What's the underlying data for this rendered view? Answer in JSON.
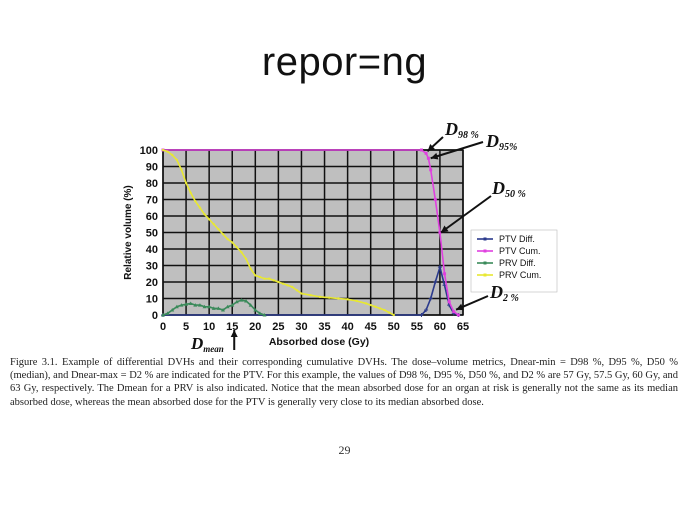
{
  "slide": {
    "title": "repor=ng",
    "caption": "Figure 3.1. Example of differential DVHs and their corresponding cumulative DVHs. The dose–volume metrics, Dnear-min = D98 %, D95 %, D50 % (median), and Dnear-max = D2 % are indicated for the PTV. For this example, the values of D98 %, D95 %, D50 %, and D2 % are 57 Gy, 57.5 Gy, 60 Gy, and 63 Gy, respectively. The Dmean for a PRV is also indicated. Notice that the mean absorbed dose for an organ at risk is generally not the same as its median absorbed dose, whereas the mean absorbed dose for the PTV is generally very close to its median absorbed dose.",
    "page_number": "29"
  },
  "chart_data": {
    "type": "line",
    "xlabel": "Absorbed dose (Gy)",
    "ylabel": "Relative volume (%)",
    "xlim": [
      0,
      65
    ],
    "ylim": [
      0,
      100
    ],
    "xticks": [
      0,
      5,
      10,
      15,
      20,
      25,
      30,
      35,
      40,
      45,
      50,
      55,
      60,
      65
    ],
    "yticks": [
      0,
      10,
      20,
      30,
      40,
      50,
      60,
      70,
      80,
      90,
      100
    ],
    "grid": true,
    "background": "#bfbfbf",
    "legend_position": "right",
    "series": [
      {
        "name": "PTV Diff.",
        "color": "#2b3a8c",
        "marker": "plus",
        "x": [
          0,
          56,
          57,
          58,
          59,
          60,
          61,
          62,
          63,
          64
        ],
        "y": [
          0,
          0,
          3,
          10,
          20,
          29,
          18,
          6,
          1,
          0
        ]
      },
      {
        "name": "PTV Cum.",
        "color": "#e040e0",
        "marker": "square",
        "x": [
          0,
          56,
          57,
          57.5,
          58,
          59,
          60,
          61,
          62,
          63,
          64
        ],
        "y": [
          100,
          100,
          98,
          95,
          88,
          70,
          50,
          25,
          8,
          2,
          0
        ]
      },
      {
        "name": "PRV Diff.",
        "color": "#3a8a5a",
        "marker": "triangle",
        "x": [
          0,
          1,
          2,
          3,
          4,
          5,
          6,
          7,
          8,
          9,
          10,
          11,
          12,
          13,
          14,
          15,
          16,
          17,
          18,
          19,
          20,
          21,
          22
        ],
        "y": [
          0,
          1,
          3,
          5,
          6,
          6.5,
          7,
          6,
          6,
          5,
          5,
          4,
          4,
          3,
          5,
          6,
          8,
          9,
          8.5,
          6,
          3,
          1,
          0
        ]
      },
      {
        "name": "PRV Cum.",
        "color": "#e8e832",
        "marker": "diamond",
        "x": [
          0,
          1,
          2,
          3,
          4,
          5,
          6,
          7,
          8,
          9,
          10,
          11,
          12,
          13,
          14,
          15,
          16,
          17,
          18,
          19,
          20,
          21,
          22,
          23,
          24,
          25,
          26,
          27,
          28,
          29,
          30,
          32,
          34,
          36,
          38,
          40,
          42,
          44,
          45,
          46,
          47,
          48,
          49,
          50
        ],
        "y": [
          100,
          99,
          97,
          94,
          88,
          80,
          74,
          69,
          65,
          61,
          58,
          55,
          52,
          49,
          46,
          44,
          41,
          38,
          34,
          28,
          24,
          23,
          22,
          22,
          21,
          20,
          19,
          18,
          17,
          15,
          13,
          12,
          11,
          10.5,
          10,
          9.5,
          8.5,
          7,
          6,
          5,
          4,
          3,
          1.5,
          0
        ]
      }
    ],
    "annotations": {
      "d98": {
        "base": "D",
        "sub": "98 %"
      },
      "d95": {
        "base": "D",
        "sub": "95%"
      },
      "d50": {
        "base": "D",
        "sub": "50 %"
      },
      "d2": {
        "base": "D",
        "sub": "2 %"
      },
      "dmean": {
        "base": "D",
        "sub": "mean",
        "x": 15
      }
    }
  }
}
